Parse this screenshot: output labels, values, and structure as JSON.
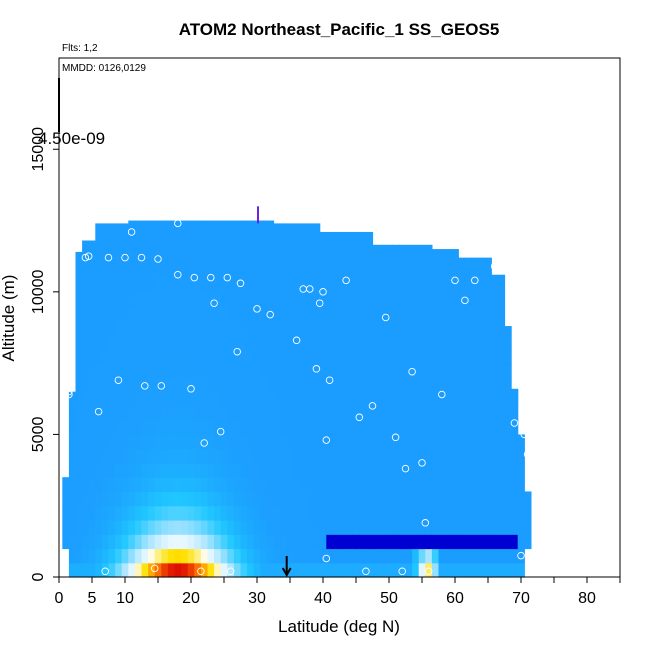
{
  "chart_data": {
    "type": "heatmap",
    "title": "ATOM2 Northeast_Pacific_1 SS_GEOS5",
    "annotations": {
      "flights": "Flts: 1,2",
      "dates": "MMDD: 0126,0129",
      "colorbar_max": "4.50e-09"
    },
    "xlabel": "Latitude (deg N)",
    "ylabel": "Altitude (m)",
    "xlim": [
      0,
      85
    ],
    "ylim": [
      0,
      18200
    ],
    "x_ticks": [
      0,
      5,
      10,
      20,
      30,
      40,
      50,
      60,
      70,
      80
    ],
    "y_ticks": [
      0,
      5000,
      10000,
      15000
    ],
    "colormap": [
      "#8020f0",
      "#5a28d8",
      "#3c1ec8",
      "#0000a0",
      "#0000d8",
      "#1a4af0",
      "#1a90ff",
      "#20c8ff",
      "#a8e4ff",
      "#ffffff",
      "#ffe000",
      "#ff8000",
      "#e01000",
      "#c00000"
    ],
    "observation_points": [
      [
        0.5,
        300
      ],
      [
        1.5,
        6400
      ],
      [
        1.5,
        6500
      ],
      [
        4,
        11200
      ],
      [
        4.5,
        11250
      ],
      [
        6,
        5800
      ],
      [
        7,
        200
      ],
      [
        7.5,
        11200
      ],
      [
        9,
        6900
      ],
      [
        10,
        11200
      ],
      [
        11,
        12100
      ],
      [
        12.5,
        11200
      ],
      [
        13,
        6700
      ],
      [
        14.5,
        300
      ],
      [
        15,
        11150
      ],
      [
        15.5,
        6700
      ],
      [
        18,
        12400
      ],
      [
        18,
        10600
      ],
      [
        20,
        6600
      ],
      [
        20.5,
        10500
      ],
      [
        21.5,
        200
      ],
      [
        22,
        4700
      ],
      [
        23,
        10500
      ],
      [
        23.5,
        9600
      ],
      [
        24.5,
        5100
      ],
      [
        25.5,
        10500
      ],
      [
        26,
        200
      ],
      [
        27,
        7900
      ],
      [
        27.5,
        10300
      ],
      [
        30,
        9400
      ],
      [
        32,
        9200
      ],
      [
        36,
        8300
      ],
      [
        37,
        10100
      ],
      [
        38,
        10100
      ],
      [
        39,
        7300
      ],
      [
        39.5,
        9600
      ],
      [
        40,
        10000
      ],
      [
        40.5,
        4800
      ],
      [
        40.5,
        650
      ],
      [
        41,
        6900
      ],
      [
        43.5,
        10400
      ],
      [
        45.5,
        5600
      ],
      [
        46.5,
        200
      ],
      [
        47.5,
        6000
      ],
      [
        49.5,
        9100
      ],
      [
        51,
        4900
      ],
      [
        52,
        200
      ],
      [
        52.5,
        3800
      ],
      [
        53.5,
        7200
      ],
      [
        55,
        4000
      ],
      [
        55.5,
        1900
      ],
      [
        56,
        200
      ],
      [
        58,
        6400
      ],
      [
        60,
        10400
      ],
      [
        61.5,
        9700
      ],
      [
        63,
        10400
      ],
      [
        66,
        10900
      ],
      [
        69,
        5400
      ],
      [
        70,
        750
      ],
      [
        70.5,
        5000
      ],
      [
        71,
        4300
      ]
    ],
    "marker": {
      "latitude": 34.5,
      "description": "arrow at surface"
    },
    "grid": false,
    "legend": "none"
  }
}
